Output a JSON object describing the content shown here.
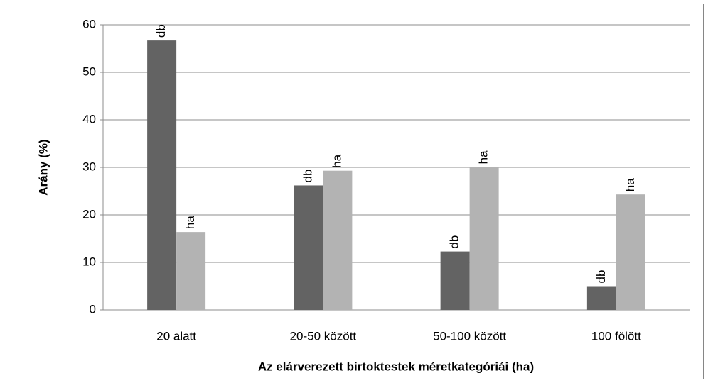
{
  "chart_data": {
    "type": "bar",
    "y_label": "Arány (%)",
    "x_label": "Az elárverezett birtoktestek méretkategóriái (ha)",
    "categories": [
      "20 alatt",
      "20-50 között",
      "50-100 között",
      "100 fölött"
    ],
    "series": [
      {
        "name": "db",
        "color": "#636363",
        "values": [
          56.7,
          26.2,
          12.3,
          5.0
        ]
      },
      {
        "name": "ha",
        "color": "#b3b3b3",
        "values": [
          16.4,
          29.3,
          30.1,
          24.3
        ]
      }
    ],
    "ylim": [
      0,
      60
    ],
    "yticks": [
      0,
      10,
      20,
      30,
      40,
      50,
      60
    ],
    "grid": true
  }
}
